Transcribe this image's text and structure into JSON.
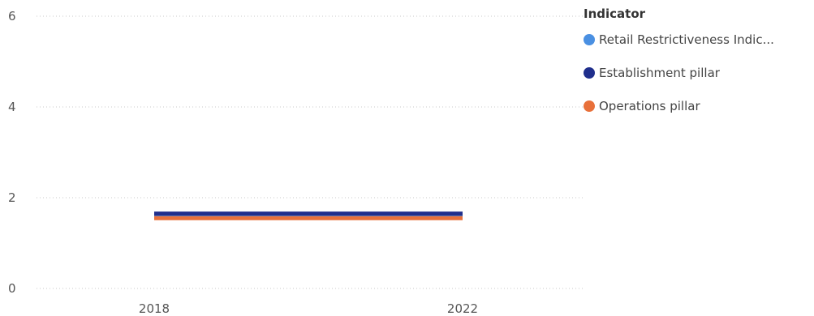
{
  "chart_data": {
    "type": "line",
    "title": "",
    "xlabel": "",
    "ylabel": "",
    "x": [
      "2018",
      "2022"
    ],
    "ylim": [
      0,
      6
    ],
    "y_ticks": [
      "0",
      "2",
      "4",
      "6"
    ],
    "grid": true,
    "legend_placement": "right",
    "legend_title": "Indicator",
    "series": [
      {
        "name": "Retail Restrictiveness Indic...",
        "color": "#4A90E2",
        "values": [
          1.6,
          1.6
        ]
      },
      {
        "name": "Establishment pillar",
        "color": "#1F2E8C",
        "values": [
          1.65,
          1.65
        ]
      },
      {
        "name": "Operations pillar",
        "color": "#E8703A",
        "values": [
          1.55,
          1.55
        ]
      }
    ]
  }
}
